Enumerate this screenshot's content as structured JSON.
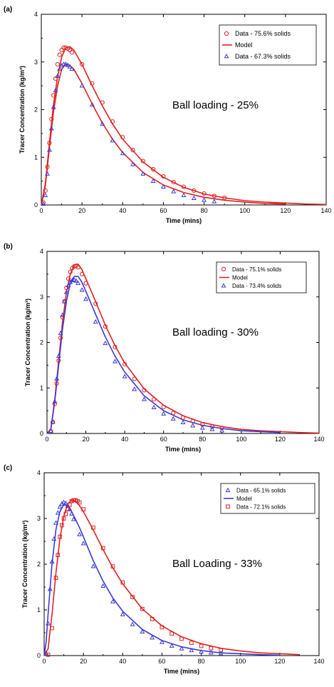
{
  "figure": {
    "colors": {
      "red": "#e02020",
      "blue": "#3a3ad8",
      "axis": "#000000"
    }
  },
  "chart_data": [
    {
      "type": "line",
      "panel_label": "(a)",
      "annotation": "Ball loading - 25%",
      "xlabel": "Time (mins)",
      "ylabel": "Tracer Concentration (kg/m³)",
      "xlim": [
        0,
        140
      ],
      "ylim": [
        0,
        4
      ],
      "x_ticks": [
        "0",
        "20",
        "40",
        "60",
        "80",
        "100",
        "120",
        "140"
      ],
      "y_ticks": [
        "0",
        "1",
        "2",
        "3",
        "4"
      ],
      "legend_position": "top-right",
      "legend": [
        {
          "label": "Data - 75.6% solids",
          "marker": "circle",
          "color": "#e02020"
        },
        {
          "label": "Model",
          "marker": "line",
          "color": "#e02020"
        },
        {
          "label": "Data - 67.3% solids",
          "marker": "triangle",
          "color": "#3a3ad8"
        }
      ],
      "series": [
        {
          "name": "Data - 75.6% solids",
          "kind": "markers",
          "marker": "circle",
          "color": "#e02020",
          "x": [
            1,
            2,
            3,
            4,
            5,
            6,
            7,
            8,
            9,
            10,
            11,
            12,
            13,
            14,
            15,
            20,
            25,
            30,
            35,
            40,
            45,
            50,
            55,
            60,
            65,
            70,
            75,
            80,
            85,
            90
          ],
          "y": [
            0.05,
            0.3,
            0.8,
            1.3,
            1.8,
            2.3,
            2.65,
            2.95,
            3.15,
            3.25,
            3.3,
            3.3,
            3.28,
            3.25,
            3.2,
            2.95,
            2.55,
            2.15,
            1.75,
            1.42,
            1.15,
            0.92,
            0.75,
            0.6,
            0.48,
            0.38,
            0.3,
            0.24,
            0.19,
            0.15
          ]
        },
        {
          "name": "Model",
          "kind": "line",
          "color": "#e02020",
          "x": [
            0,
            2,
            4,
            6,
            8,
            10,
            12,
            14,
            16,
            20,
            25,
            30,
            35,
            40,
            50,
            60,
            70,
            80,
            90,
            100,
            110,
            120,
            130,
            140
          ],
          "y": [
            0,
            0.45,
            1.3,
            2.1,
            2.7,
            3.1,
            3.3,
            3.32,
            3.25,
            2.95,
            2.5,
            2.08,
            1.7,
            1.38,
            0.9,
            0.58,
            0.37,
            0.23,
            0.15,
            0.09,
            0.06,
            0.04,
            0.02,
            0.01
          ]
        },
        {
          "name": "Model",
          "kind": "line",
          "color": "#e02020",
          "x": [
            0,
            2,
            4,
            6,
            8,
            10,
            12,
            14,
            16,
            20,
            25,
            30,
            35,
            40,
            50,
            60,
            70,
            80,
            90,
            100,
            110,
            120
          ],
          "y": [
            0,
            0.4,
            1.2,
            1.95,
            2.5,
            2.85,
            2.95,
            2.93,
            2.85,
            2.55,
            2.12,
            1.72,
            1.38,
            1.1,
            0.68,
            0.42,
            0.26,
            0.16,
            0.1,
            0.06,
            0.03,
            0.02
          ]
        },
        {
          "name": "Data - 67.3% solids",
          "kind": "markers",
          "marker": "triangle",
          "color": "#3a3ad8",
          "x": [
            1,
            2,
            3,
            4,
            5,
            6,
            7,
            8,
            9,
            10,
            11,
            12,
            13,
            14,
            15,
            20,
            25,
            30,
            35,
            40,
            45,
            50,
            55,
            60,
            65,
            70,
            75,
            80,
            85
          ],
          "y": [
            0.02,
            0.2,
            0.65,
            1.15,
            1.6,
            2.05,
            2.4,
            2.7,
            2.85,
            2.92,
            2.95,
            2.95,
            2.93,
            2.9,
            2.85,
            2.5,
            2.1,
            1.7,
            1.35,
            1.08,
            0.85,
            0.65,
            0.5,
            0.38,
            0.28,
            0.2,
            0.14,
            0.1,
            0.07
          ]
        }
      ]
    },
    {
      "type": "line",
      "panel_label": "(b)",
      "annotation": "Ball loading - 30%",
      "xlabel": "Time (mins)",
      "ylabel": "Tracer Concentration (kg/m³)",
      "xlim": [
        0,
        140
      ],
      "ylim": [
        0,
        4
      ],
      "x_ticks": [
        "0",
        "20",
        "40",
        "60",
        "80",
        "100",
        "120",
        "140"
      ],
      "y_ticks": [
        "0",
        "1",
        "2",
        "3",
        "4"
      ],
      "legend_position": "top-right",
      "legend": [
        {
          "label": "Data - 75.1% solids",
          "marker": "circle",
          "color": "#e02020"
        },
        {
          "label": "Model",
          "marker": "line",
          "color": "#e02020"
        },
        {
          "label": "Data - 73.4% solids",
          "marker": "triangle",
          "color": "#3a3ad8"
        }
      ],
      "series": [
        {
          "name": "Data - 75.1% solids",
          "kind": "markers",
          "marker": "circle",
          "color": "#e02020",
          "x": [
            2,
            3,
            4,
            5,
            6,
            7,
            8,
            9,
            10,
            11,
            12,
            13,
            14,
            15,
            16,
            18,
            20,
            25,
            30,
            35,
            40,
            45,
            50,
            55,
            60,
            65,
            70,
            75,
            80,
            85,
            90
          ],
          "y": [
            0.05,
            0.25,
            0.65,
            1.1,
            1.6,
            2.1,
            2.55,
            2.9,
            3.2,
            3.4,
            3.55,
            3.63,
            3.67,
            3.68,
            3.65,
            3.5,
            3.3,
            2.85,
            2.35,
            1.9,
            1.52,
            1.2,
            0.95,
            0.75,
            0.58,
            0.45,
            0.35,
            0.27,
            0.2,
            0.15,
            0.12
          ]
        },
        {
          "name": "Model",
          "kind": "line",
          "color": "#e02020",
          "x": [
            0,
            2,
            4,
            6,
            8,
            10,
            12,
            14,
            16,
            18,
            20,
            25,
            30,
            35,
            40,
            50,
            60,
            70,
            80,
            90,
            100,
            110,
            120,
            130,
            140
          ],
          "y": [
            0,
            0.1,
            0.75,
            1.6,
            2.45,
            3.1,
            3.5,
            3.7,
            3.72,
            3.6,
            3.4,
            2.9,
            2.38,
            1.93,
            1.55,
            0.98,
            0.62,
            0.39,
            0.24,
            0.15,
            0.09,
            0.06,
            0.04,
            0.02,
            0.01
          ]
        },
        {
          "name": "Model",
          "kind": "line",
          "color": "#3a3ad8",
          "x": [
            0,
            2,
            4,
            6,
            8,
            10,
            12,
            14,
            16,
            18,
            20,
            25,
            30,
            35,
            40,
            50,
            60,
            70,
            80,
            90,
            100,
            110,
            120
          ],
          "y": [
            0,
            0.1,
            0.7,
            1.5,
            2.3,
            2.9,
            3.3,
            3.45,
            3.45,
            3.32,
            3.12,
            2.62,
            2.12,
            1.7,
            1.35,
            0.83,
            0.5,
            0.3,
            0.18,
            0.11,
            0.06,
            0.04,
            0.02
          ]
        },
        {
          "name": "Data - 73.4% solids",
          "kind": "markers",
          "marker": "triangle",
          "color": "#3a3ad8",
          "x": [
            2,
            3,
            4,
            5,
            6,
            7,
            8,
            9,
            10,
            11,
            12,
            13,
            14,
            15,
            16,
            18,
            20,
            25,
            30,
            35,
            40,
            45,
            50,
            55,
            60,
            65,
            70,
            75,
            80,
            85,
            90
          ],
          "y": [
            0.05,
            0.25,
            0.7,
            1.2,
            1.7,
            2.2,
            2.6,
            2.9,
            3.1,
            3.25,
            3.32,
            3.36,
            3.37,
            3.35,
            3.3,
            3.15,
            2.95,
            2.45,
            1.98,
            1.58,
            1.25,
            0.97,
            0.75,
            0.57,
            0.43,
            0.32,
            0.24,
            0.17,
            0.12,
            0.09,
            0.06
          ]
        }
      ]
    },
    {
      "type": "line",
      "panel_label": "(c)",
      "annotation": "Ball Loading - 33%",
      "xlabel": "Time (mins)",
      "ylabel": "Tracer Concentration (kg/m³)",
      "xlim": [
        0,
        140
      ],
      "ylim": [
        0,
        4
      ],
      "x_ticks": [
        "0",
        "20",
        "40",
        "60",
        "80",
        "100",
        "120",
        "140"
      ],
      "y_ticks": [
        "0",
        "1",
        "2",
        "3",
        "4"
      ],
      "legend_position": "top-right",
      "legend": [
        {
          "label": "Data - 65.1% solids",
          "marker": "triangle",
          "color": "#3a3ad8"
        },
        {
          "label": "Model",
          "marker": "line",
          "color": "#3a3ad8"
        },
        {
          "label": "Data - 72.1% solids",
          "marker": "square",
          "color": "#e02020"
        }
      ],
      "series": [
        {
          "name": "Data - 65.1% solids",
          "kind": "markers",
          "marker": "triangle",
          "color": "#3a3ad8",
          "x": [
            1,
            2,
            3,
            4,
            5,
            6,
            7,
            8,
            9,
            10,
            11,
            12,
            13,
            14,
            15,
            18,
            20,
            25,
            30,
            35,
            40,
            45,
            50,
            55,
            60,
            65,
            70,
            75,
            80,
            85,
            90
          ],
          "y": [
            0.05,
            0.7,
            1.45,
            2.05,
            2.55,
            2.9,
            3.12,
            3.25,
            3.32,
            3.35,
            3.33,
            3.28,
            3.2,
            3.1,
            2.98,
            2.65,
            2.45,
            1.95,
            1.52,
            1.18,
            0.9,
            0.68,
            0.52,
            0.39,
            0.29,
            0.21,
            0.15,
            0.11,
            0.08,
            0.06,
            0.04
          ]
        },
        {
          "name": "Model",
          "kind": "line",
          "color": "#3a3ad8",
          "x": [
            0,
            1,
            2,
            4,
            6,
            8,
            10,
            12,
            14,
            16,
            18,
            20,
            25,
            30,
            35,
            40,
            50,
            60,
            70,
            80,
            90,
            100,
            110,
            120
          ],
          "y": [
            0,
            0.3,
            0.9,
            2.0,
            2.75,
            3.15,
            3.3,
            3.28,
            3.15,
            2.98,
            2.8,
            2.6,
            2.08,
            1.63,
            1.26,
            0.97,
            0.57,
            0.33,
            0.19,
            0.11,
            0.06,
            0.04,
            0.02,
            0.01
          ]
        },
        {
          "name": "Model",
          "kind": "line",
          "color": "#e02020",
          "x": [
            0,
            2,
            4,
            6,
            8,
            10,
            12,
            14,
            16,
            18,
            20,
            25,
            30,
            35,
            40,
            50,
            60,
            70,
            80,
            90,
            100,
            110,
            120,
            130
          ],
          "y": [
            0,
            0.15,
            0.9,
            1.8,
            2.55,
            3.05,
            3.32,
            3.4,
            3.38,
            3.28,
            3.15,
            2.75,
            2.32,
            1.92,
            1.57,
            1.02,
            0.65,
            0.41,
            0.26,
            0.16,
            0.1,
            0.06,
            0.04,
            0.02
          ]
        },
        {
          "name": "Data - 72.1% solids",
          "kind": "markers",
          "marker": "square",
          "color": "#e02020",
          "x": [
            2,
            4,
            6,
            7,
            8,
            9,
            10,
            11,
            12,
            13,
            14,
            15,
            16,
            17,
            18,
            20,
            25,
            30,
            35,
            40,
            45,
            50,
            55,
            60,
            65,
            70,
            75,
            80,
            85,
            90
          ],
          "y": [
            0.02,
            0.6,
            1.7,
            2.2,
            2.6,
            2.85,
            3.0,
            3.1,
            3.2,
            3.3,
            3.38,
            3.4,
            3.4,
            3.38,
            3.35,
            3.2,
            2.8,
            2.35,
            1.95,
            1.6,
            1.28,
            1.02,
            0.8,
            0.62,
            0.48,
            0.37,
            0.28,
            0.21,
            0.16,
            0.12
          ]
        }
      ]
    }
  ]
}
